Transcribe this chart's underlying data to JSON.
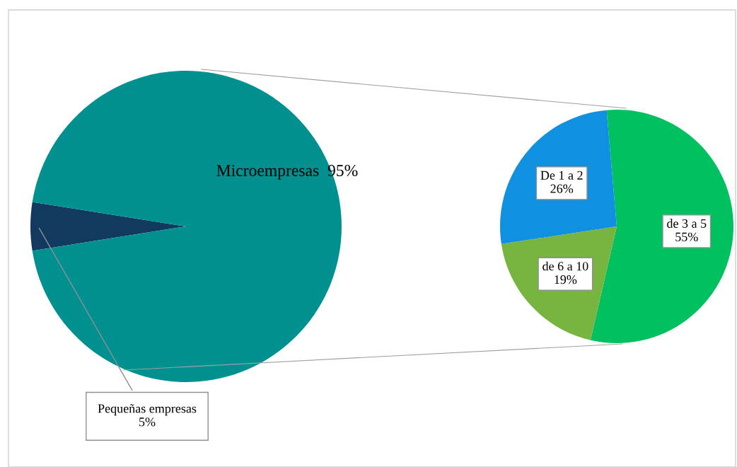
{
  "chart_data": [
    {
      "type": "pie",
      "categories": [
        "Pequeñas empresas",
        "Microempresas"
      ],
      "values": [
        5,
        95
      ],
      "colors": [
        "#123a5e",
        "#009090"
      ],
      "value_labels": [
        "5%",
        "95%"
      ]
    },
    {
      "type": "pie",
      "categories": [
        "de 3 a 5",
        "de 6 a 10",
        "De 1 a 2"
      ],
      "values": [
        55,
        19,
        26
      ],
      "colors": [
        "#00c060",
        "#78b440",
        "#1090e0"
      ],
      "value_labels": [
        "55%",
        "19%",
        "26%"
      ]
    }
  ]
}
